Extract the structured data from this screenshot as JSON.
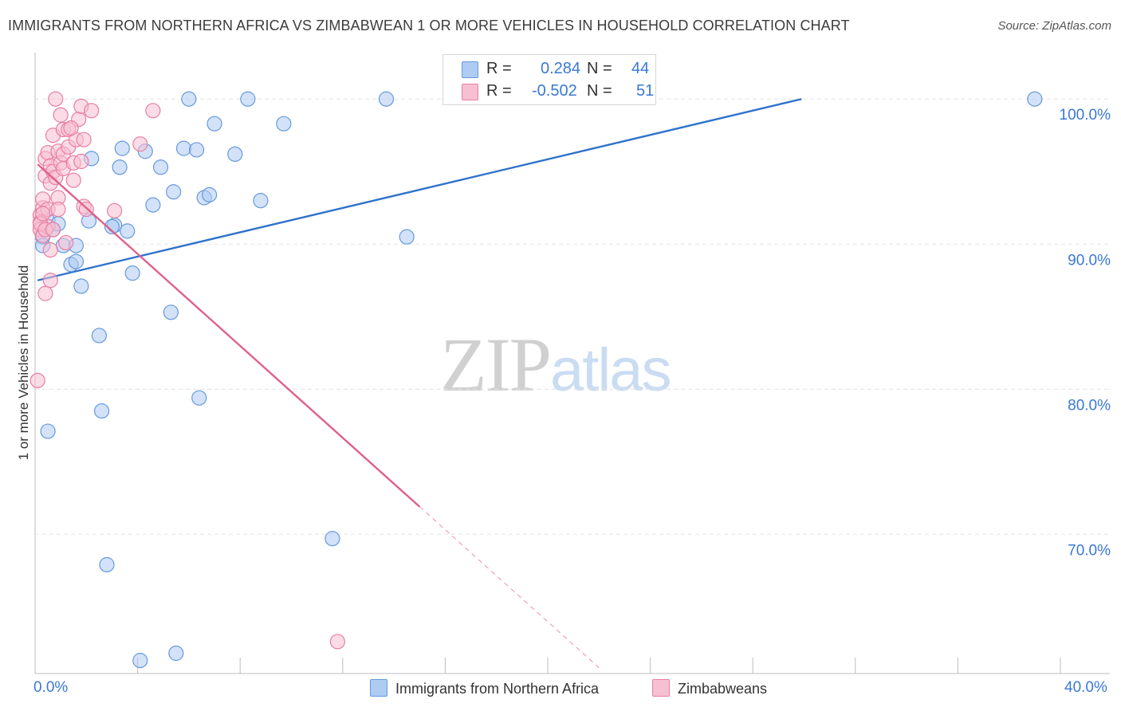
{
  "header": {
    "title": "IMMIGRANTS FROM NORTHERN AFRICA VS ZIMBABWEAN 1 OR MORE VEHICLES IN HOUSEHOLD CORRELATION CHART",
    "source": "Source: ZipAtlas.com"
  },
  "watermark": {
    "zip": "ZIP",
    "atlas": "atlas"
  },
  "legend": {
    "r_label": "R =",
    "n_label": "N =",
    "series1": {
      "r": "0.284",
      "n": "44"
    },
    "series2": {
      "r": "-0.502",
      "n": "51"
    }
  },
  "colors": {
    "blue_fill": "#aecbf2",
    "blue_stroke": "#6699dd",
    "blue_line": "#2f72cc",
    "pink_fill": "#f7bfd2",
    "pink_stroke": "#e87ea1",
    "pink_line": "#e0608a",
    "tick_label": "#3a78d8"
  },
  "chart_data": {
    "type": "scatter",
    "title": "IMMIGRANTS FROM NORTHERN AFRICA VS ZIMBABWEAN 1 OR MORE VEHICLES IN HOUSEHOLD CORRELATION CHART",
    "xlabel": "",
    "ylabel": "1 or more Vehicles in Household",
    "xlim": [
      0,
      40
    ],
    "ylim": [
      60.4,
      103.2
    ],
    "x_tick_labels": [
      "0.0%",
      "40.0%"
    ],
    "y_ticks": [
      70,
      80,
      90,
      100
    ],
    "y_tick_labels": [
      "70.0%",
      "80.0%",
      "90.0%",
      "100.0%"
    ],
    "grid": true,
    "legend_position": "top-center",
    "series": [
      {
        "name": "Immigrants from Northern Africa",
        "r": 0.284,
        "n": 44,
        "trend": {
          "x": [
            0.1,
            29.9
          ],
          "y": [
            87.5,
            100.0
          ]
        },
        "points": [
          [
            0.3,
            90.5
          ],
          [
            0.5,
            91.6
          ],
          [
            0.7,
            91.0
          ],
          [
            0.3,
            89.9
          ],
          [
            0.9,
            91.4
          ],
          [
            0.5,
            77.1
          ],
          [
            1.1,
            89.9
          ],
          [
            1.4,
            88.6
          ],
          [
            1.6,
            88.8
          ],
          [
            1.8,
            87.1
          ],
          [
            1.6,
            89.9
          ],
          [
            2.1,
            91.6
          ],
          [
            2.2,
            95.9
          ],
          [
            2.5,
            83.7
          ],
          [
            2.6,
            78.5
          ],
          [
            2.8,
            67.9
          ],
          [
            3.1,
            91.3
          ],
          [
            3.3,
            95.3
          ],
          [
            3.4,
            96.6
          ],
          [
            3.6,
            90.9
          ],
          [
            3.8,
            88.0
          ],
          [
            4.1,
            61.3
          ],
          [
            4.3,
            96.4
          ],
          [
            4.6,
            92.7
          ],
          [
            4.9,
            95.3
          ],
          [
            5.3,
            85.3
          ],
          [
            5.4,
            93.6
          ],
          [
            5.5,
            61.8
          ],
          [
            5.8,
            96.6
          ],
          [
            6.0,
            100.0
          ],
          [
            6.3,
            96.5
          ],
          [
            6.4,
            79.4
          ],
          [
            6.6,
            93.2
          ],
          [
            6.8,
            93.4
          ],
          [
            7.0,
            98.3
          ],
          [
            7.8,
            96.2
          ],
          [
            8.3,
            100.0
          ],
          [
            8.8,
            93.0
          ],
          [
            9.7,
            98.3
          ],
          [
            11.6,
            69.7
          ],
          [
            13.7,
            100.0
          ],
          [
            14.5,
            90.5
          ],
          [
            39.0,
            100.0
          ],
          [
            3.0,
            91.2
          ]
        ]
      },
      {
        "name": "Zimbabweans",
        "r": -0.502,
        "n": 51,
        "trend_solid": {
          "x": [
            0.1,
            15.0
          ],
          "y": [
            95.5,
            71.9
          ]
        },
        "trend_dashed": {
          "x": [
            15.0,
            22.0
          ],
          "y": [
            71.9,
            60.8
          ]
        },
        "points": [
          [
            0.1,
            80.6
          ],
          [
            0.2,
            92.0
          ],
          [
            0.2,
            91.5
          ],
          [
            0.2,
            91.0
          ],
          [
            0.3,
            92.5
          ],
          [
            0.3,
            93.1
          ],
          [
            0.3,
            90.6
          ],
          [
            0.4,
            95.9
          ],
          [
            0.4,
            94.7
          ],
          [
            0.5,
            96.3
          ],
          [
            0.5,
            92.4
          ],
          [
            0.5,
            91.2
          ],
          [
            0.4,
            86.6
          ],
          [
            0.6,
            95.4
          ],
          [
            0.6,
            94.2
          ],
          [
            0.6,
            89.6
          ],
          [
            0.6,
            87.5
          ],
          [
            0.7,
            97.5
          ],
          [
            0.7,
            95.0
          ],
          [
            0.8,
            100.0
          ],
          [
            0.8,
            94.6
          ],
          [
            0.9,
            93.2
          ],
          [
            0.9,
            92.4
          ],
          [
            0.9,
            96.4
          ],
          [
            1.0,
            98.9
          ],
          [
            1.0,
            95.6
          ],
          [
            1.1,
            97.9
          ],
          [
            1.1,
            96.2
          ],
          [
            1.1,
            95.2
          ],
          [
            1.2,
            90.1
          ],
          [
            1.3,
            97.9
          ],
          [
            1.3,
            96.7
          ],
          [
            1.5,
            95.6
          ],
          [
            1.5,
            94.4
          ],
          [
            1.6,
            97.2
          ],
          [
            1.7,
            98.6
          ],
          [
            1.8,
            95.7
          ],
          [
            1.8,
            99.5
          ],
          [
            1.9,
            97.2
          ],
          [
            1.9,
            92.6
          ],
          [
            2.0,
            92.4
          ],
          [
            2.2,
            99.2
          ],
          [
            3.1,
            92.3
          ],
          [
            4.1,
            96.9
          ],
          [
            4.6,
            99.2
          ],
          [
            11.8,
            62.6
          ],
          [
            0.2,
            91.4
          ],
          [
            0.4,
            91.0
          ],
          [
            0.7,
            91.0
          ],
          [
            1.4,
            98.0
          ],
          [
            0.3,
            92.1
          ]
        ]
      }
    ]
  },
  "bottom_legend": {
    "series1_label": "Immigrants from Northern Africa",
    "series2_label": "Zimbabweans"
  }
}
